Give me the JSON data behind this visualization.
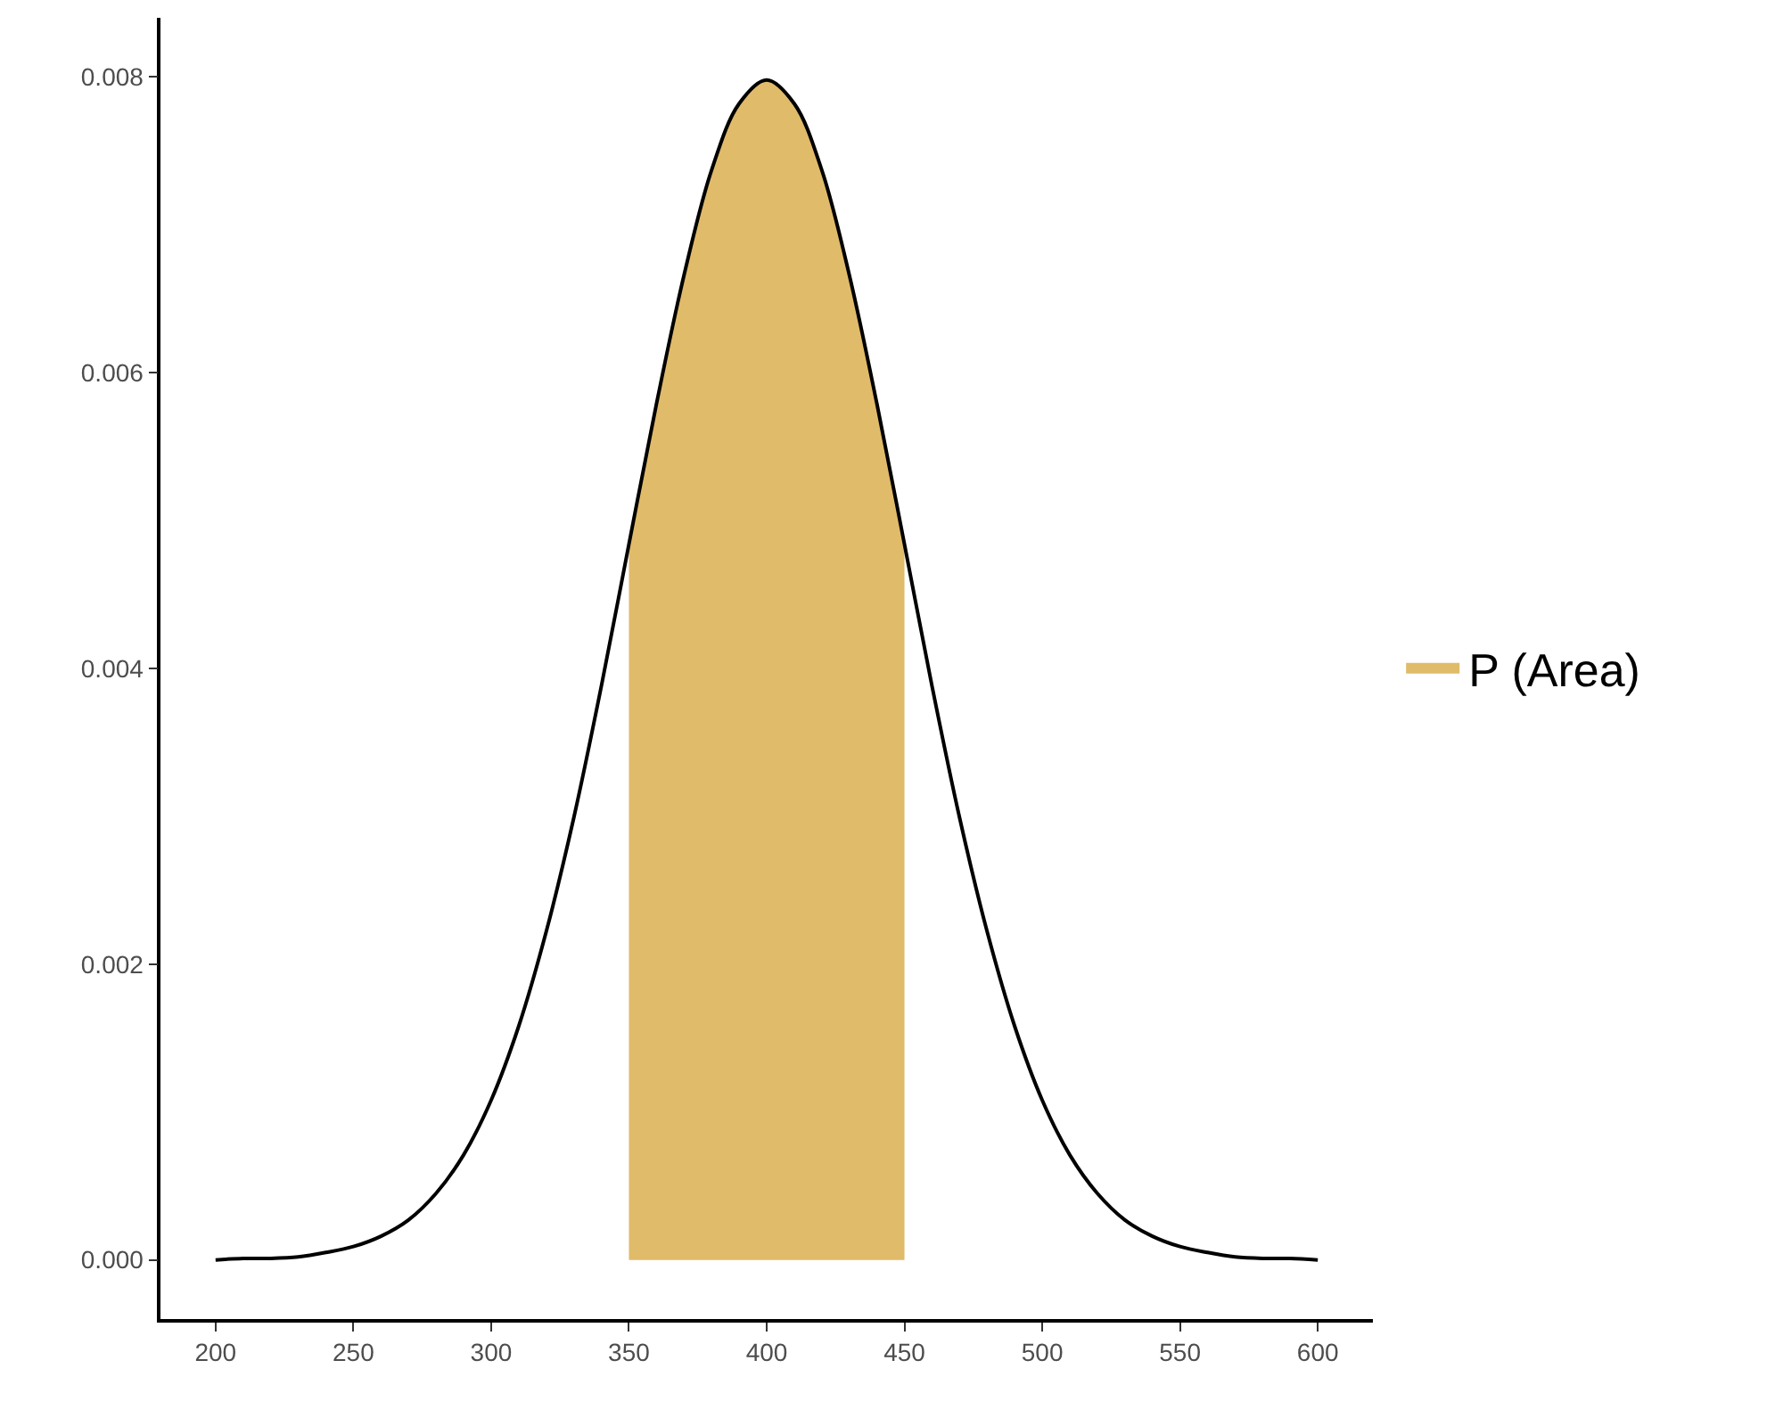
{
  "chart_data": {
    "type": "line",
    "legend": "right",
    "grid": false,
    "marker": "none",
    "line_style": "solid",
    "xlim": [
      180,
      620
    ],
    "xticks": [
      200,
      250,
      300,
      350,
      400,
      450,
      500,
      550,
      600
    ],
    "ylim": [
      -0.0004,
      0.0084
    ],
    "yticks": [
      {
        "value": 0,
        "label": "0.000"
      },
      {
        "value": 0.002,
        "label": "0.002"
      },
      {
        "value": 0.004,
        "label": "0.004"
      },
      {
        "value": 0.006,
        "label": "0.006"
      },
      {
        "value": 0.008,
        "label": "0.008"
      }
    ],
    "series": [
      {
        "type": "area",
        "name": "P (Area)",
        "color": "#e0bb6a",
        "x": [
          350,
          360,
          370,
          380,
          390,
          400,
          410,
          420,
          430,
          440,
          450
        ],
        "values": [
          0.00484,
          0.00579,
          0.00666,
          0.00737,
          0.00782,
          0.00798,
          0.00782,
          0.00737,
          0.00666,
          0.00579,
          0.00484
        ]
      },
      {
        "color": "#000000",
        "x": [
          200,
          210,
          220,
          230,
          240,
          250,
          260,
          270,
          280,
          290,
          300,
          310,
          320,
          330,
          340,
          350,
          360,
          370,
          380,
          390,
          400,
          410,
          420,
          430,
          440,
          450,
          460,
          470,
          480,
          490,
          500,
          510,
          520,
          530,
          540,
          550,
          560,
          570,
          580,
          590,
          600
        ],
        "values": [
          0.0,
          1e-05,
          1e-05,
          2e-05,
          5e-05,
          9e-05,
          0.00016,
          0.00027,
          0.00045,
          0.00071,
          0.00108,
          0.00158,
          0.00222,
          0.00299,
          0.00388,
          0.00484,
          0.00579,
          0.00666,
          0.00737,
          0.00782,
          0.00798,
          0.00782,
          0.00737,
          0.00666,
          0.00579,
          0.00484,
          0.00388,
          0.00299,
          0.00222,
          0.00158,
          0.00108,
          0.00071,
          0.00045,
          0.00027,
          0.00016,
          9e-05,
          5e-05,
          2e-05,
          1e-05,
          1e-05,
          0.0
        ]
      }
    ]
  }
}
